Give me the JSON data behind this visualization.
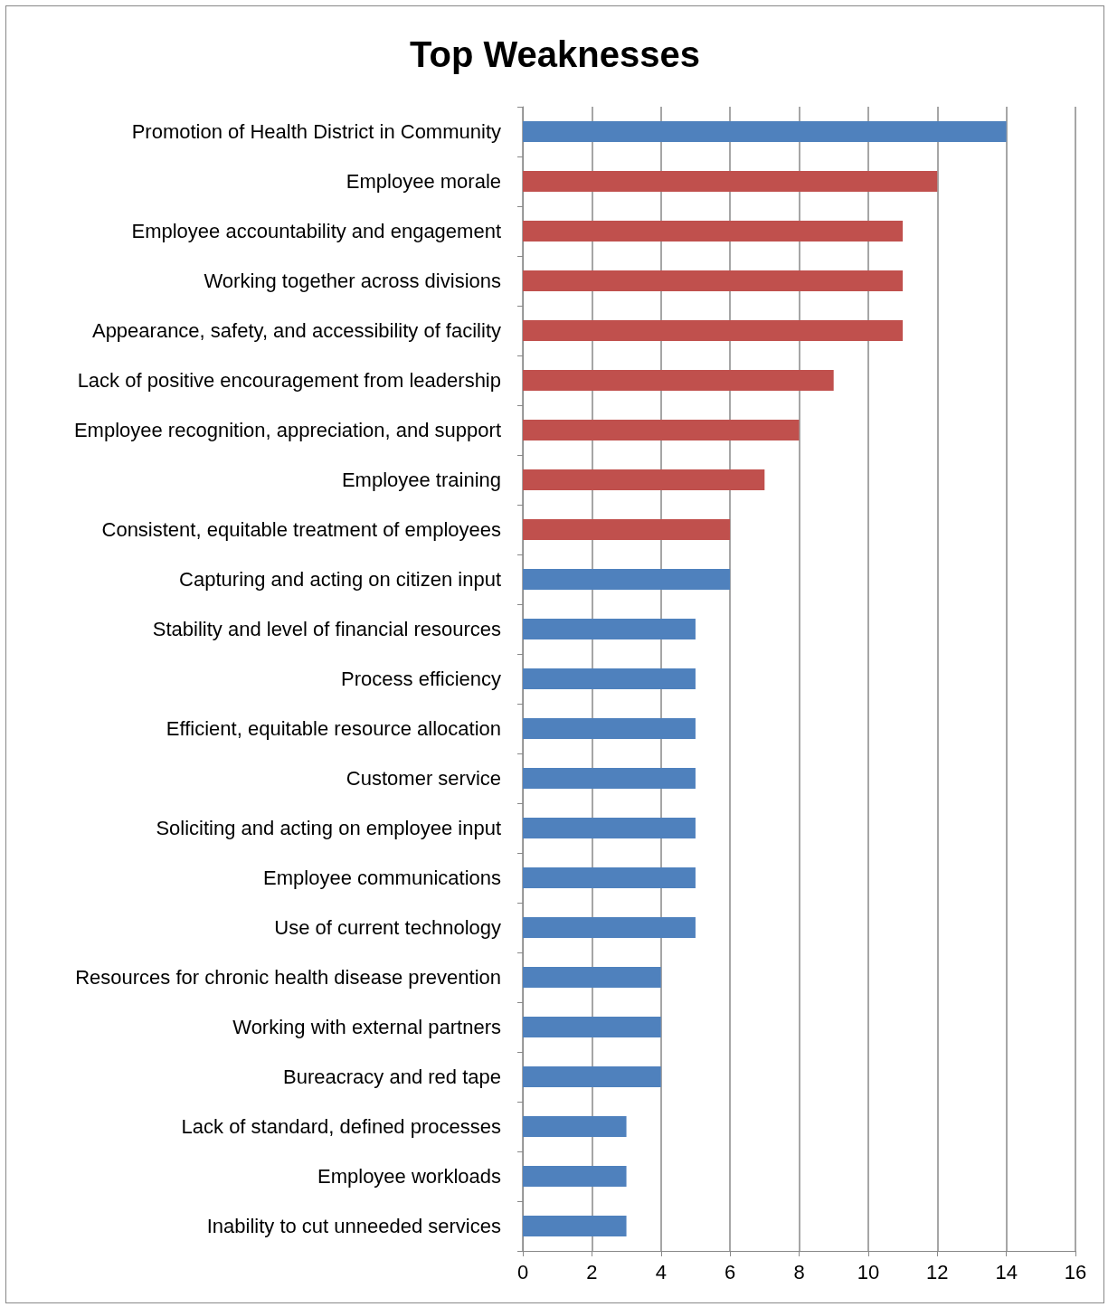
{
  "chart_data": {
    "type": "bar",
    "orientation": "horizontal",
    "title": "Top Weaknesses",
    "categories": [
      "Promotion of Health District in Community",
      "Employee morale",
      "Employee accountability and engagement",
      "Working together across divisions",
      "Appearance, safety, and accessibility of facility",
      "Lack of positive encouragement from leadership",
      "Employee recognition, appreciation, and support",
      "Employee training",
      "Consistent, equitable treatment of employees",
      "Capturing and acting on citizen input",
      "Stability and level of financial resources",
      "Process efficiency",
      "Efficient, equitable resource allocation",
      "Customer service",
      "Soliciting and acting on employee input",
      "Employee communications",
      "Use of current technology",
      "Resources for chronic health disease prevention",
      "Working with external partners",
      "Bureacracy and red tape",
      "Lack of standard, defined processes",
      "Employee workloads",
      "Inability to cut unneeded services"
    ],
    "values": [
      14,
      12,
      11,
      11,
      11,
      9,
      8,
      7,
      6,
      6,
      5,
      5,
      5,
      5,
      5,
      5,
      5,
      4,
      4,
      4,
      3,
      3,
      3
    ],
    "colors": [
      "#4f81bd",
      "#c0504d",
      "#c0504d",
      "#c0504d",
      "#c0504d",
      "#c0504d",
      "#c0504d",
      "#c0504d",
      "#c0504d",
      "#4f81bd",
      "#4f81bd",
      "#4f81bd",
      "#4f81bd",
      "#4f81bd",
      "#4f81bd",
      "#4f81bd",
      "#4f81bd",
      "#4f81bd",
      "#4f81bd",
      "#4f81bd",
      "#4f81bd",
      "#4f81bd",
      "#4f81bd"
    ],
    "xlim": [
      0,
      16
    ],
    "xticks": [
      0,
      2,
      4,
      6,
      8,
      10,
      12,
      14,
      16
    ],
    "grid": "x"
  }
}
